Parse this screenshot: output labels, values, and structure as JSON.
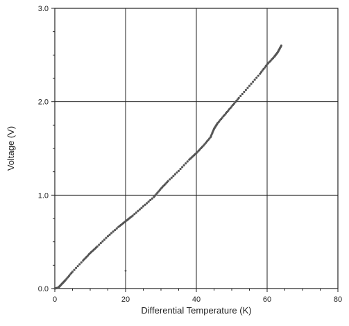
{
  "chart_data": {
    "type": "scatter",
    "title": "",
    "xlabel": "Differential Temperature (K)",
    "ylabel": "Voltage (V)",
    "xlim": [
      0,
      80
    ],
    "ylim": [
      0.0,
      3.0
    ],
    "x_ticks": [
      "0",
      "20",
      "40",
      "60",
      "80"
    ],
    "y_ticks": [
      "0.0",
      "1.0",
      "2.0",
      "3.0"
    ],
    "grid": true,
    "legend": "none",
    "marker_color": "#555555",
    "series": [
      {
        "x": [
          0,
          1,
          2,
          3,
          5,
          8,
          10,
          12,
          15,
          18,
          20,
          22,
          25,
          28,
          30,
          32,
          35,
          38,
          40,
          42,
          44,
          45,
          46,
          48,
          50,
          52,
          55,
          58,
          60,
          62,
          63,
          64
        ],
        "y": [
          0.0,
          0.01,
          0.05,
          0.09,
          0.18,
          0.3,
          0.38,
          0.45,
          0.56,
          0.66,
          0.72,
          0.78,
          0.88,
          0.98,
          1.07,
          1.15,
          1.26,
          1.38,
          1.45,
          1.53,
          1.62,
          1.71,
          1.77,
          1.86,
          1.95,
          2.04,
          2.17,
          2.3,
          2.4,
          2.48,
          2.53,
          2.6
        ]
      }
    ],
    "outliers": [
      {
        "x": 20,
        "y": 0.19
      }
    ]
  }
}
